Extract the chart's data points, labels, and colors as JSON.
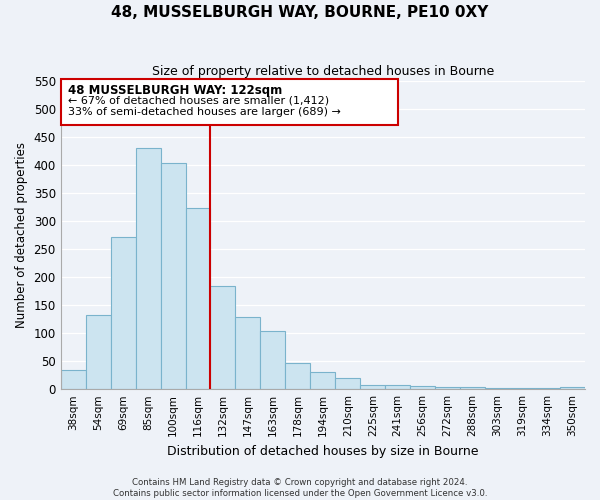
{
  "title": "48, MUSSELBURGH WAY, BOURNE, PE10 0XY",
  "subtitle": "Size of property relative to detached houses in Bourne",
  "xlabel": "Distribution of detached houses by size in Bourne",
  "ylabel": "Number of detached properties",
  "bar_labels": [
    "38sqm",
    "54sqm",
    "69sqm",
    "85sqm",
    "100sqm",
    "116sqm",
    "132sqm",
    "147sqm",
    "163sqm",
    "178sqm",
    "194sqm",
    "210sqm",
    "225sqm",
    "241sqm",
    "256sqm",
    "272sqm",
    "288sqm",
    "303sqm",
    "319sqm",
    "334sqm",
    "350sqm"
  ],
  "bar_heights": [
    35,
    133,
    271,
    430,
    403,
    322,
    184,
    128,
    104,
    46,
    30,
    20,
    8,
    8,
    5,
    4,
    3,
    2,
    2,
    2,
    3
  ],
  "bar_color": "#cce4f0",
  "bar_edge_color": "#7ab3cc",
  "vline_x": 6.0,
  "vline_color": "#cc0000",
  "annotation_title": "48 MUSSELBURGH WAY: 122sqm",
  "annotation_line1": "← 67% of detached houses are smaller (1,412)",
  "annotation_line2": "33% of semi-detached houses are larger (689) →",
  "annotation_box_color": "#ffffff",
  "annotation_box_edge": "#cc0000",
  "ylim": [
    0,
    550
  ],
  "yticks": [
    0,
    50,
    100,
    150,
    200,
    250,
    300,
    350,
    400,
    450,
    500,
    550
  ],
  "footer_line1": "Contains HM Land Registry data © Crown copyright and database right 2024.",
  "footer_line2": "Contains public sector information licensed under the Open Government Licence v3.0.",
  "background_color": "#eef2f8"
}
